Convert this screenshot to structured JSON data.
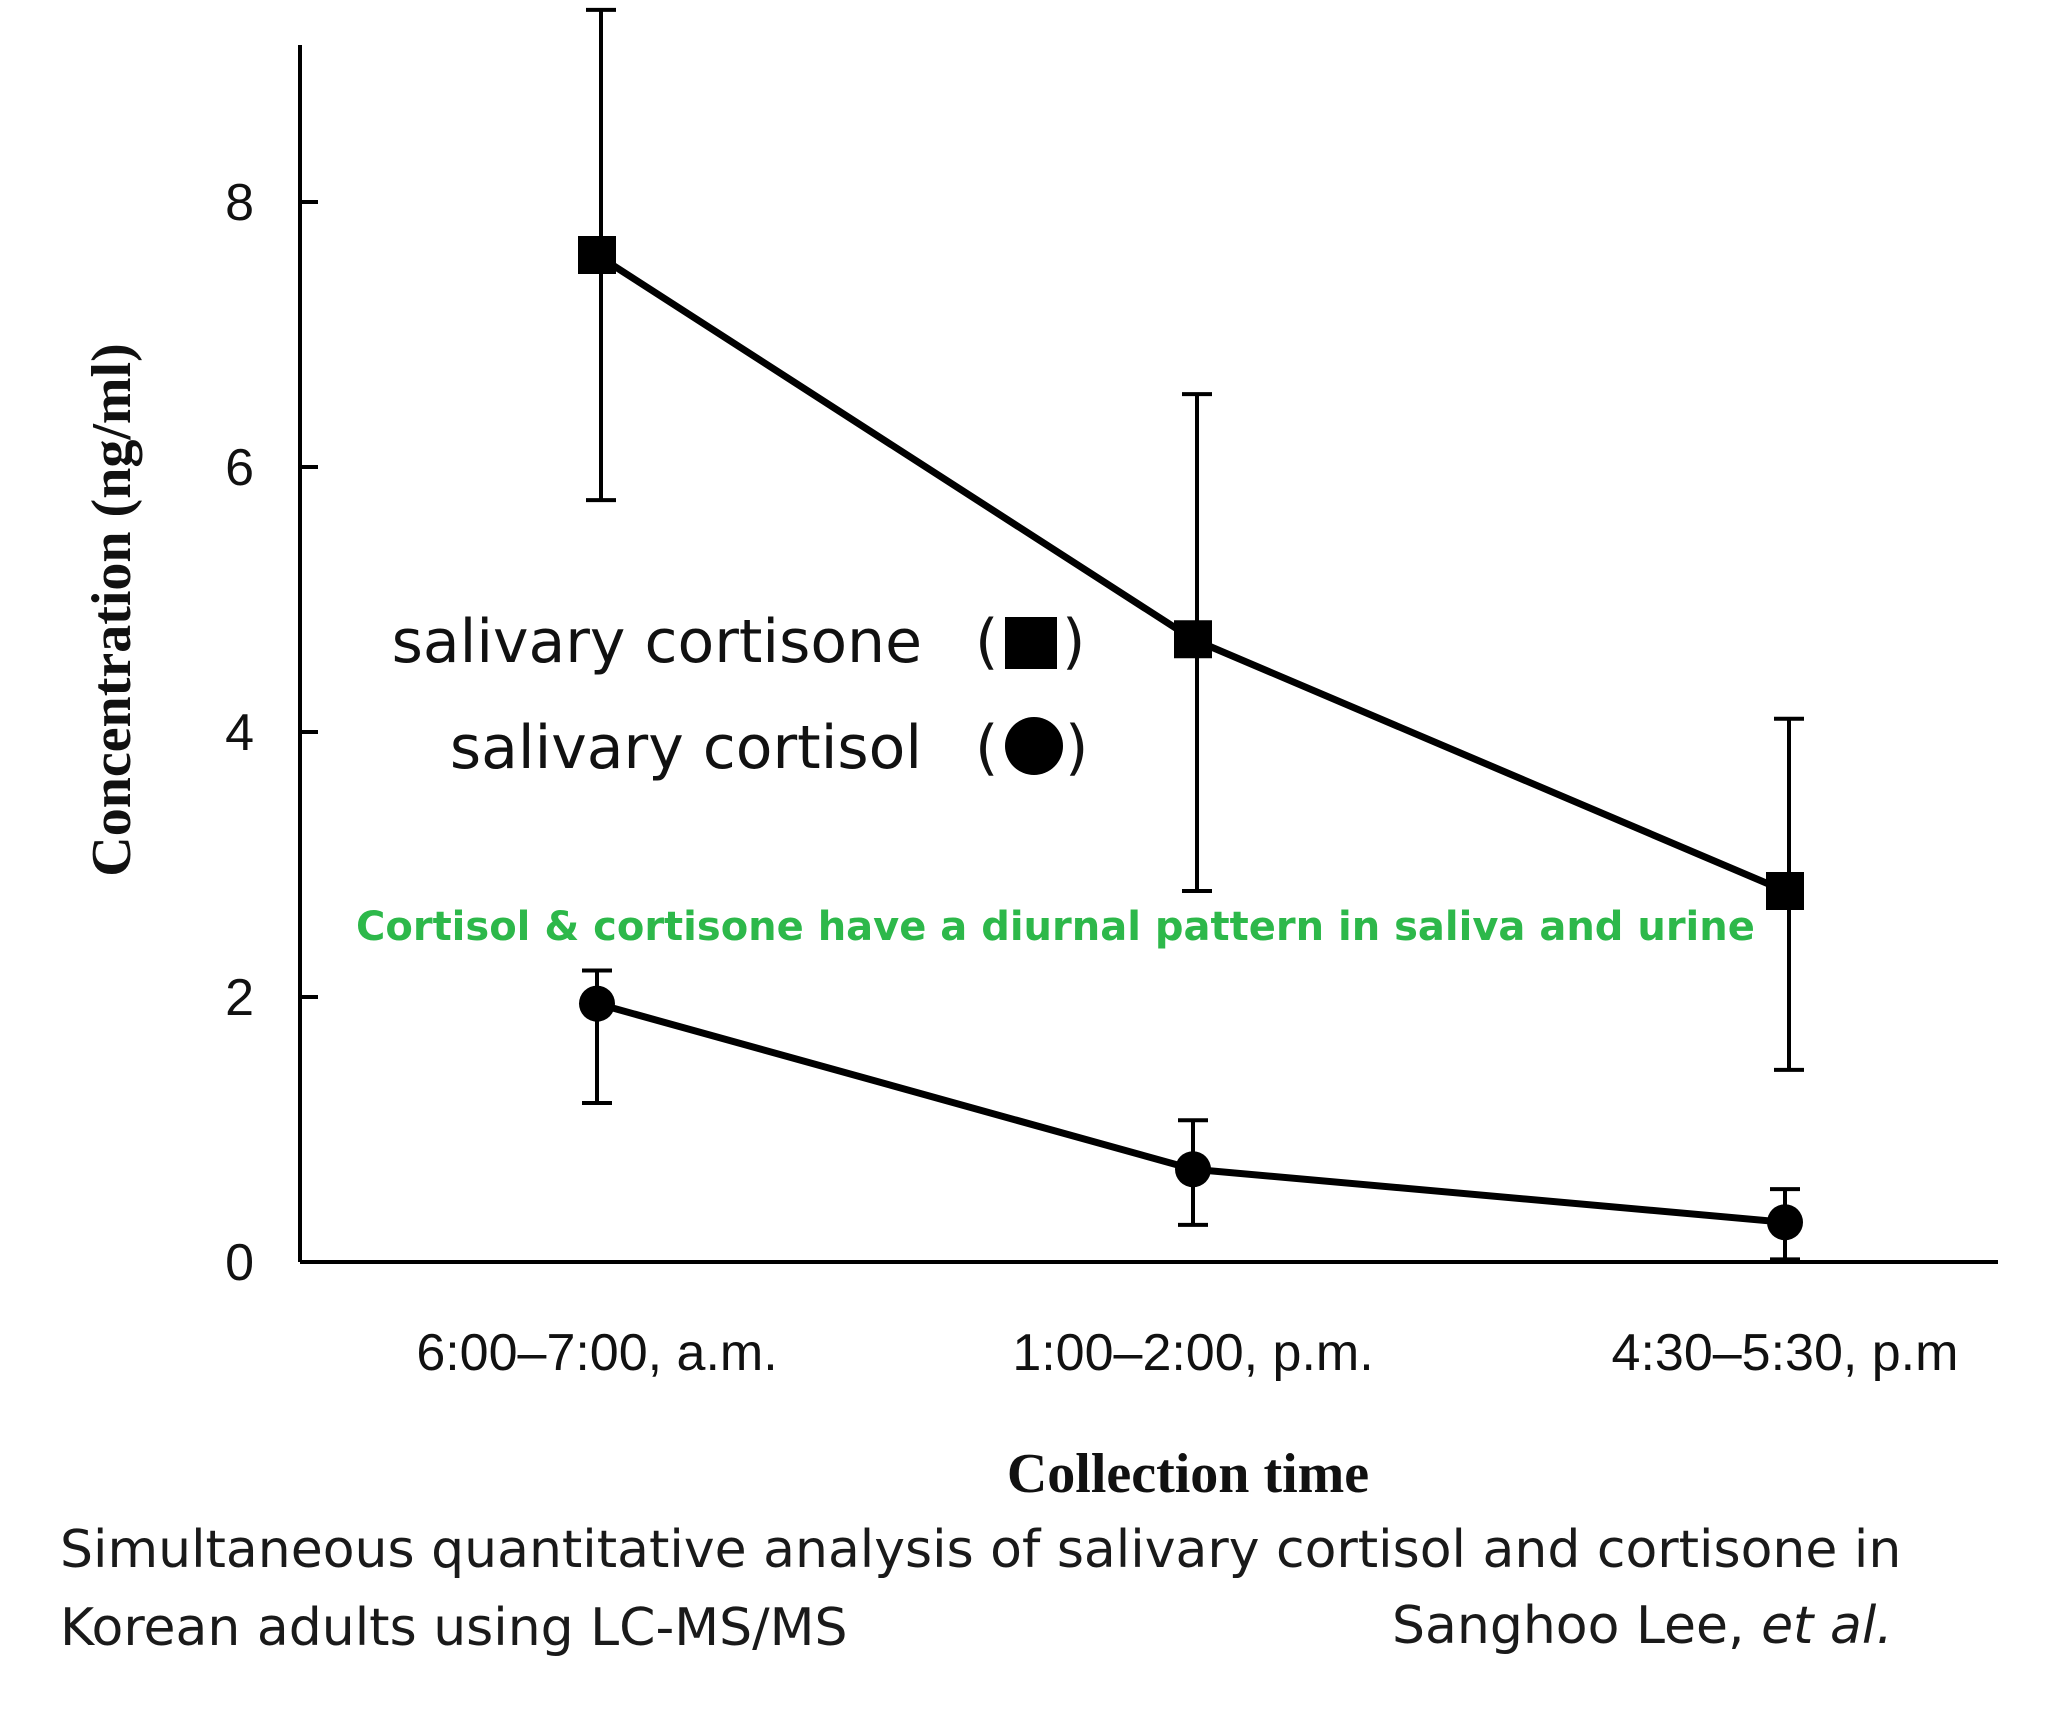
{
  "chart_data": {
    "type": "line",
    "categories": [
      "6:00–7:00, a.m.",
      "1:00–2:00, p.m.",
      "4:30–5:30, p.m"
    ],
    "series": [
      {
        "name": "salivary cortisone",
        "marker": "square",
        "values": [
          7.6,
          4.7,
          2.8
        ],
        "error_low": [
          5.75,
          2.8,
          1.45
        ],
        "error_high": [
          9.45,
          6.55,
          4.1
        ]
      },
      {
        "name": "salivary cortisol",
        "marker": "circle",
        "values": [
          1.95,
          0.7,
          0.3
        ],
        "error_low": [
          1.2,
          0.28,
          0.02
        ],
        "error_high": [
          2.2,
          1.07,
          0.55
        ]
      }
    ],
    "xlabel": "Collection time",
    "ylabel": "Concentration (ng/ml)",
    "yticks": [
      0,
      2,
      4,
      6,
      8
    ],
    "ylim": [
      0,
      9.45
    ],
    "grid": false,
    "legend": {
      "placement": "center-left",
      "entries": [
        {
          "label": "salivary cortisone",
          "symbol_open": "(",
          "symbol_close": ")",
          "marker": "square"
        },
        {
          "label": "salivary cortisol",
          "symbol_open": "(",
          "symbol_close": ")",
          "marker": "circle"
        }
      ]
    },
    "annotation": {
      "text": "Cortisol & cortisone have a diurnal pattern in saliva and urine",
      "color": "#2db84a"
    },
    "line_color": "#000000"
  },
  "caption": {
    "line1": "Simultaneous quantitative analysis of salivary cortisol and cortisone in",
    "line2": "Korean adults using LC-MS/MS",
    "author": "Sanghoo Lee,",
    "author_suffix": "et al."
  }
}
